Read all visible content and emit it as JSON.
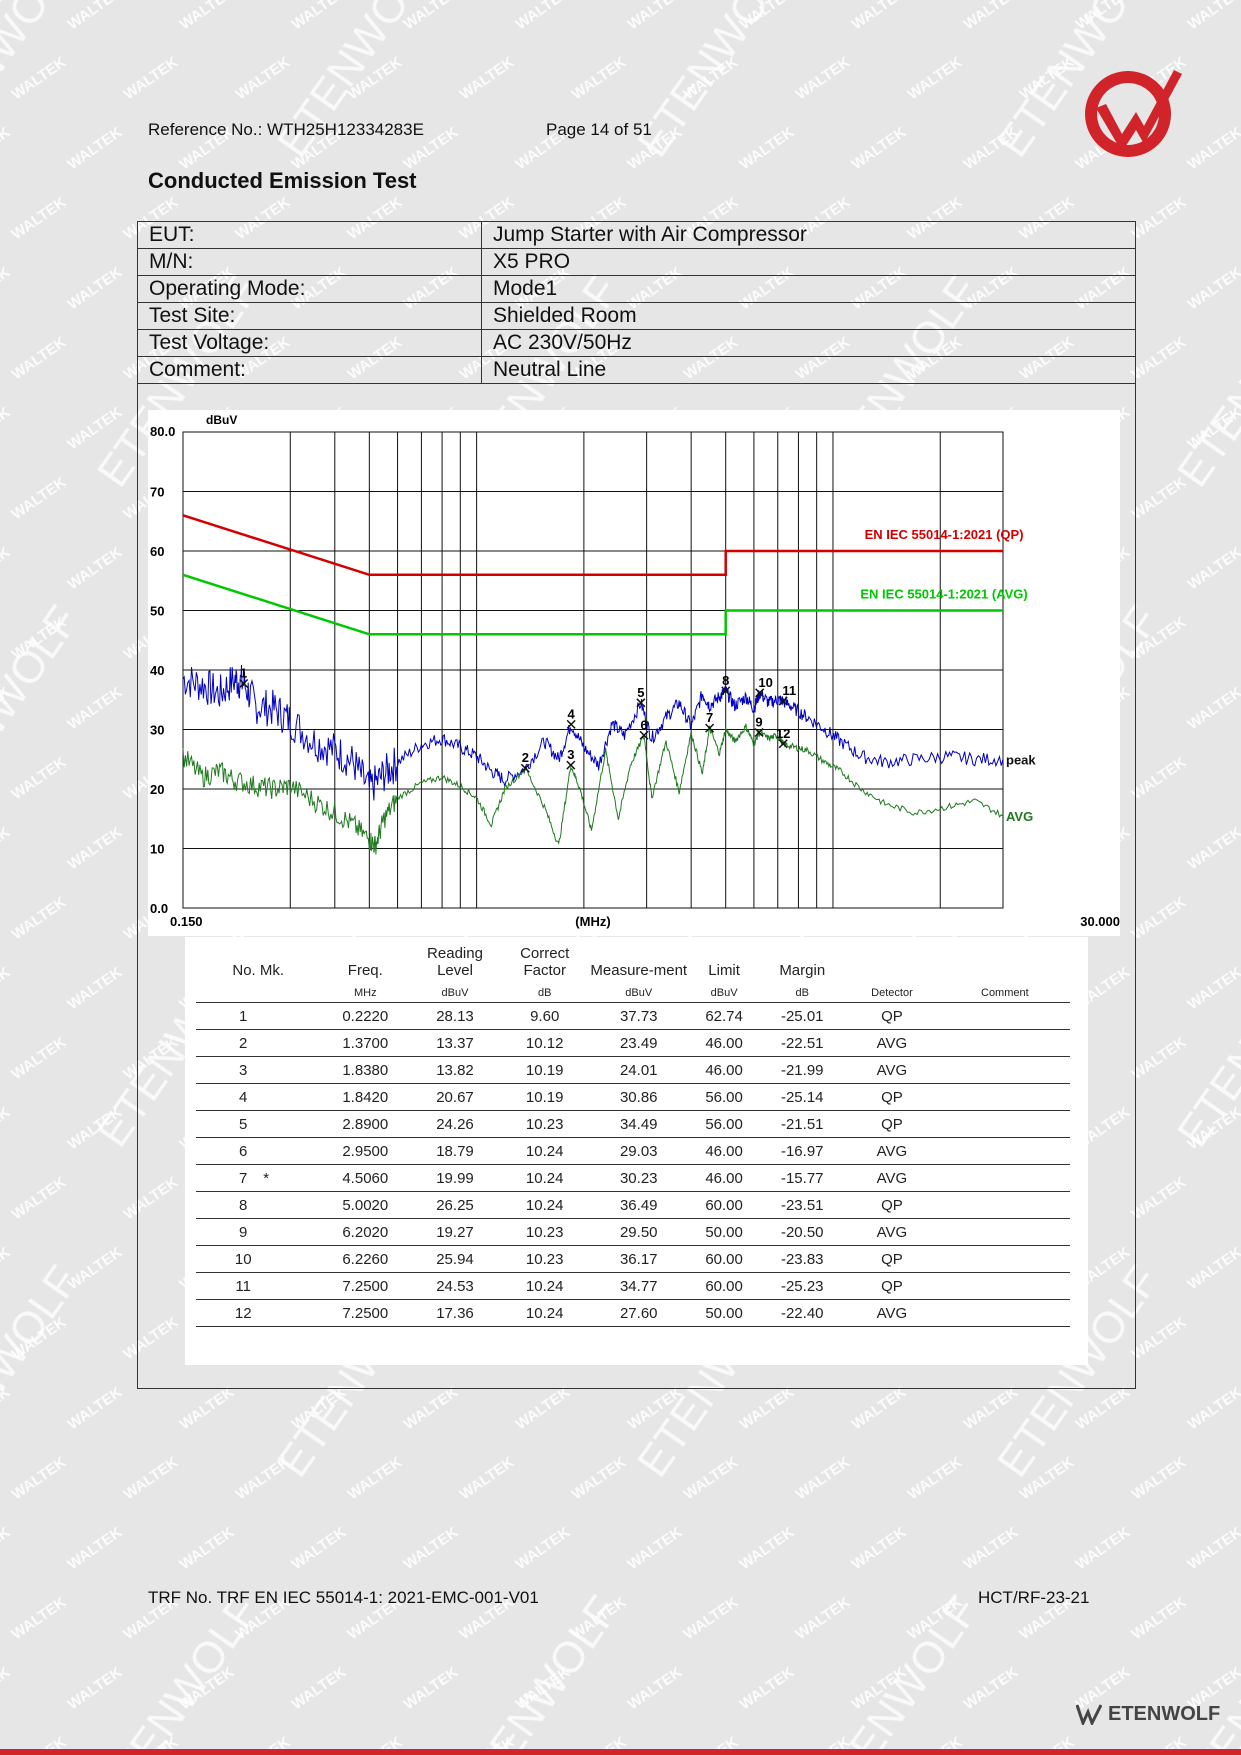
{
  "header": {
    "reference": "Reference No.: WTH25H12334283E",
    "page": "Page 14 of 51"
  },
  "title": "Conducted Emission Test",
  "info": [
    {
      "key": "EUT:",
      "value": "Jump Starter with Air Compressor"
    },
    {
      "key": "M/N:",
      "value": "X5 PRO"
    },
    {
      "key": "Operating Mode:",
      "value": "Mode1"
    },
    {
      "key": "Test Site:",
      "value": "Shielded Room"
    },
    {
      "key": "Test Voltage:",
      "value": "AC 230V/50Hz"
    },
    {
      "key": "Comment:",
      "value": "Neutral Line"
    }
  ],
  "chart_data": {
    "type": "line",
    "x_scale": "log",
    "xlabel": "(MHz)",
    "ylabel": "dBuV",
    "xlim": [
      0.15,
      30.0
    ],
    "ylim": [
      0.0,
      80.0
    ],
    "x_ticks": [
      "0.150",
      "(MHz)",
      "30.000"
    ],
    "y_ticks": [
      "0.0",
      "10",
      "20",
      "30",
      "40",
      "50",
      "60",
      "70",
      "80.0"
    ],
    "grid": true,
    "limit_lines": [
      {
        "name": "EN IEC 55014-1:2021 (QP)",
        "color": "#d40000",
        "points": [
          [
            0.15,
            66
          ],
          [
            0.5,
            56
          ],
          [
            5.0,
            56
          ],
          [
            5.0,
            60
          ],
          [
            30.0,
            60
          ]
        ]
      },
      {
        "name": "EN IEC 55014-1:2021 (AVG)",
        "color": "#00c800",
        "points": [
          [
            0.15,
            56
          ],
          [
            0.5,
            46
          ],
          [
            5.0,
            46
          ],
          [
            5.0,
            50
          ],
          [
            30.0,
            50
          ]
        ]
      }
    ],
    "series": [
      {
        "name": "peak",
        "color": "#0000c0",
        "x": [
          0.15,
          0.17,
          0.19,
          0.21,
          0.222,
          0.24,
          0.27,
          0.3,
          0.35,
          0.4,
          0.45,
          0.5,
          0.55,
          0.6,
          0.7,
          0.8,
          0.9,
          1.0,
          1.1,
          1.2,
          1.37,
          1.55,
          1.7,
          1.842,
          2.0,
          2.2,
          2.4,
          2.6,
          2.89,
          3.1,
          3.4,
          3.7,
          4.0,
          4.3,
          4.506,
          4.8,
          5.002,
          5.3,
          5.7,
          6.0,
          6.226,
          6.6,
          7.0,
          7.25,
          7.8,
          8.5,
          9.5,
          10.5,
          12.0,
          14.0,
          17.0,
          21.0,
          25.0,
          30.0
        ],
        "y": [
          38.5,
          37.5,
          36.0,
          38.5,
          37.73,
          34.0,
          33.5,
          31.5,
          28.0,
          26.5,
          24.5,
          20.0,
          22.5,
          24.5,
          27.5,
          28.5,
          27.0,
          25.5,
          23.0,
          21.5,
          23.5,
          28.0,
          25.0,
          30.86,
          27.0,
          24.0,
          31.0,
          29.0,
          34.49,
          28.5,
          32.0,
          34.5,
          30.5,
          36.0,
          34.0,
          35.5,
          36.49,
          34.0,
          35.5,
          33.5,
          36.17,
          34.5,
          35.0,
          34.77,
          33.5,
          32.0,
          30.0,
          28.0,
          25.5,
          24.5,
          25.0,
          25.5,
          25.0,
          25.0
        ]
      },
      {
        "name": "AVG",
        "color": "#1f7a1f",
        "x": [
          0.15,
          0.17,
          0.19,
          0.21,
          0.24,
          0.27,
          0.3,
          0.35,
          0.4,
          0.45,
          0.5,
          0.52,
          0.55,
          0.6,
          0.7,
          0.8,
          0.9,
          1.0,
          1.1,
          1.2,
          1.37,
          1.55,
          1.7,
          1.838,
          1.95,
          2.1,
          2.3,
          2.5,
          2.7,
          2.95,
          3.1,
          3.4,
          3.7,
          4.0,
          4.3,
          4.506,
          4.8,
          5.002,
          5.3,
          5.7,
          6.0,
          6.202,
          6.6,
          7.0,
          7.25,
          7.8,
          8.5,
          9.5,
          10.5,
          12.0,
          14.0,
          17.0,
          21.0,
          25.0,
          30.0
        ],
        "y": [
          25.5,
          22.0,
          23.0,
          21.5,
          20.5,
          20.0,
          20.5,
          18.0,
          16.0,
          14.0,
          11.5,
          10.5,
          15.0,
          18.5,
          21.0,
          22.0,
          20.5,
          18.5,
          14.0,
          20.0,
          23.49,
          17.0,
          10.5,
          24.01,
          20.0,
          13.0,
          26.5,
          15.0,
          24.0,
          29.03,
          18.5,
          28.0,
          19.5,
          29.5,
          22.5,
          30.23,
          26.0,
          30.0,
          28.0,
          30.5,
          27.5,
          29.5,
          28.5,
          29.0,
          27.6,
          27.0,
          26.5,
          24.5,
          23.0,
          20.0,
          17.5,
          16.0,
          17.0,
          18.0,
          15.5
        ]
      }
    ],
    "markers": [
      {
        "label": "1",
        "x": 0.222,
        "y": 37.73
      },
      {
        "label": "2",
        "x": 1.37,
        "y": 23.49
      },
      {
        "label": "3",
        "x": 1.838,
        "y": 24.01
      },
      {
        "label": "4",
        "x": 1.842,
        "y": 30.86
      },
      {
        "label": "5",
        "x": 2.89,
        "y": 34.49
      },
      {
        "label": "6",
        "x": 2.95,
        "y": 29.03
      },
      {
        "label": "7",
        "x": 4.506,
        "y": 30.23
      },
      {
        "label": "8",
        "x": 5.002,
        "y": 36.49
      },
      {
        "label": "9",
        "x": 6.202,
        "y": 29.5
      },
      {
        "label": "10",
        "x": 6.226,
        "y": 36.17
      },
      {
        "label": "11",
        "x": 7.25,
        "y": 34.77
      },
      {
        "label": "12",
        "x": 7.25,
        "y": 27.6
      }
    ]
  },
  "results": {
    "headers": [
      "No. Mk.",
      "Freq.",
      "Reading Level",
      "Correct Factor",
      "Measure-ment",
      "Limit",
      "Margin",
      "",
      ""
    ],
    "units": [
      "",
      "MHz",
      "dBuV",
      "dB",
      "dBuV",
      "dBuV",
      "dB",
      "Detector",
      "Comment"
    ],
    "rows": [
      [
        "1",
        "",
        "0.2220",
        "28.13",
        "9.60",
        "37.73",
        "62.74",
        "-25.01",
        "QP"
      ],
      [
        "2",
        "",
        "1.3700",
        "13.37",
        "10.12",
        "23.49",
        "46.00",
        "-22.51",
        "AVG"
      ],
      [
        "3",
        "",
        "1.8380",
        "13.82",
        "10.19",
        "24.01",
        "46.00",
        "-21.99",
        "AVG"
      ],
      [
        "4",
        "",
        "1.8420",
        "20.67",
        "10.19",
        "30.86",
        "56.00",
        "-25.14",
        "QP"
      ],
      [
        "5",
        "",
        "2.8900",
        "24.26",
        "10.23",
        "34.49",
        "56.00",
        "-21.51",
        "QP"
      ],
      [
        "6",
        "",
        "2.9500",
        "18.79",
        "10.24",
        "29.03",
        "46.00",
        "-16.97",
        "AVG"
      ],
      [
        "7",
        "*",
        "4.5060",
        "19.99",
        "10.24",
        "30.23",
        "46.00",
        "-15.77",
        "AVG"
      ],
      [
        "8",
        "",
        "5.0020",
        "26.25",
        "10.24",
        "36.49",
        "60.00",
        "-23.51",
        "QP"
      ],
      [
        "9",
        "",
        "6.2020",
        "19.27",
        "10.23",
        "29.50",
        "50.00",
        "-20.50",
        "AVG"
      ],
      [
        "10",
        "",
        "6.2260",
        "25.94",
        "10.23",
        "36.17",
        "60.00",
        "-23.83",
        "QP"
      ],
      [
        "11",
        "",
        "7.2500",
        "24.53",
        "10.24",
        "34.77",
        "60.00",
        "-25.23",
        "QP"
      ],
      [
        "12",
        "",
        "7.2500",
        "17.36",
        "10.24",
        "27.60",
        "50.00",
        "-22.40",
        "AVG"
      ]
    ]
  },
  "footer": {
    "trf": "TRF No. TRF EN IEC 55014-1: 2021-EMC-001-V01",
    "code": "HCT/RF-23-21"
  },
  "watermarks": [
    "WALTEK",
    "ETENWOLF"
  ],
  "brand": "ETENWOLF",
  "colors": {
    "brand_red": "#d0232a"
  }
}
